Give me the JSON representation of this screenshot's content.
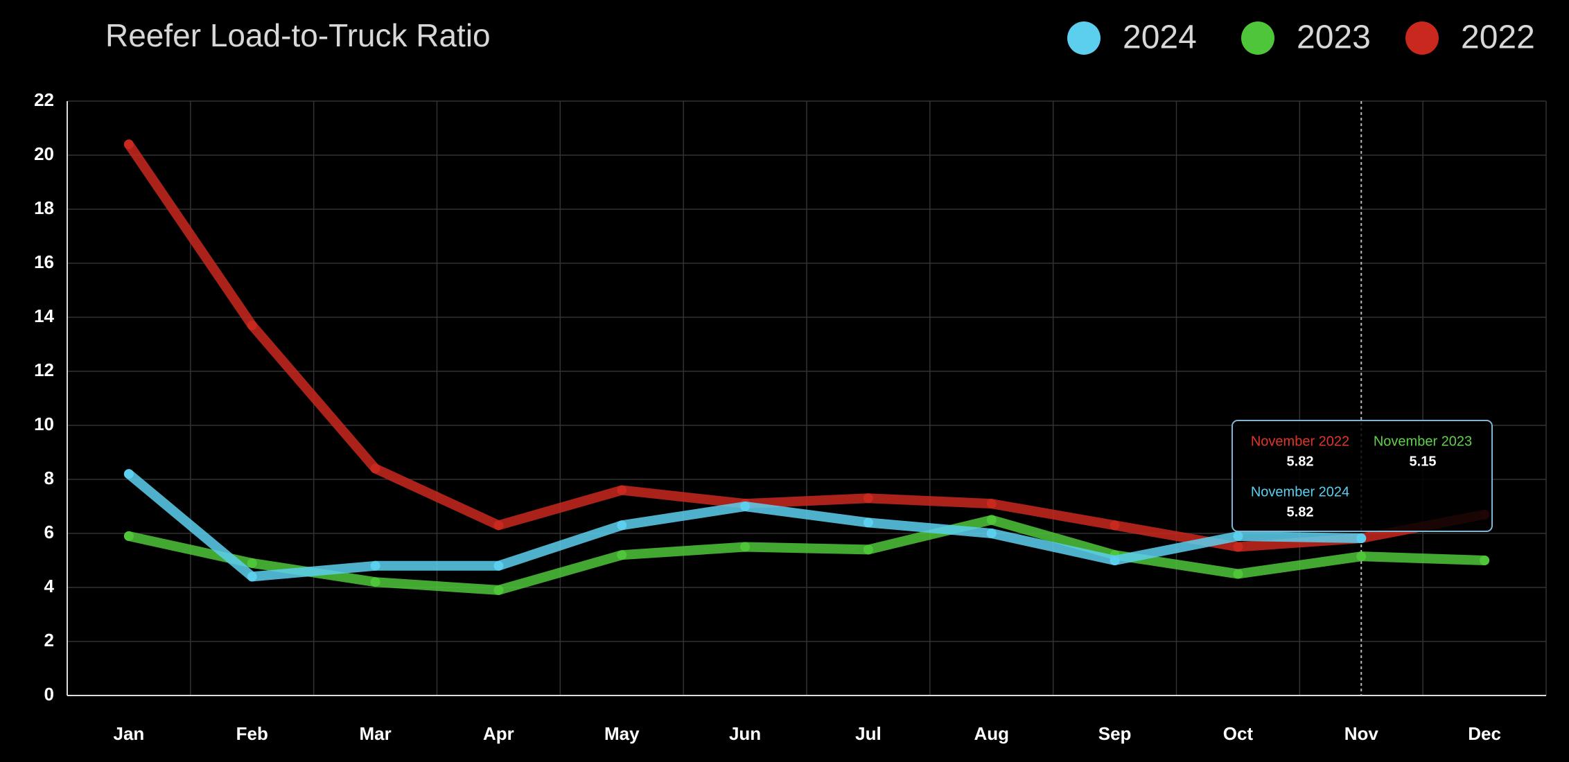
{
  "chart_data": {
    "type": "line",
    "title": "Reefer Load-to-Truck Ratio",
    "categories": [
      "Jan",
      "Feb",
      "Mar",
      "Apr",
      "May",
      "Jun",
      "Jul",
      "Aug",
      "Sep",
      "Oct",
      "Nov",
      "Dec"
    ],
    "series": [
      {
        "name": "2024",
        "color": "#5ccfee",
        "values": [
          8.2,
          4.4,
          4.8,
          4.8,
          6.3,
          7.0,
          6.4,
          6.0,
          5.0,
          5.9,
          5.82,
          null
        ]
      },
      {
        "name": "2023",
        "color": "#4fc63a",
        "values": [
          5.9,
          4.9,
          4.2,
          3.9,
          5.2,
          5.5,
          5.4,
          6.5,
          5.2,
          4.5,
          5.15,
          5.0
        ]
      },
      {
        "name": "2022",
        "color": "#c8281e",
        "values": [
          20.4,
          13.7,
          8.4,
          6.3,
          7.6,
          7.1,
          7.3,
          7.1,
          6.3,
          5.5,
          5.82,
          6.7
        ]
      }
    ],
    "ylim": [
      0,
      22
    ],
    "yticks": [
      0,
      2,
      4,
      6,
      8,
      10,
      12,
      14,
      16,
      18,
      20,
      22
    ],
    "grid": true,
    "legend": "top-right",
    "tooltip": {
      "entries": [
        {
          "label": "November 2022",
          "value": 5.82,
          "color": "#e0362a"
        },
        {
          "label": "November 2023",
          "value": 5.15,
          "color": "#5fd14a"
        },
        {
          "label": "November 2024",
          "value": 5.82,
          "color": "#5ccfee"
        }
      ]
    }
  }
}
